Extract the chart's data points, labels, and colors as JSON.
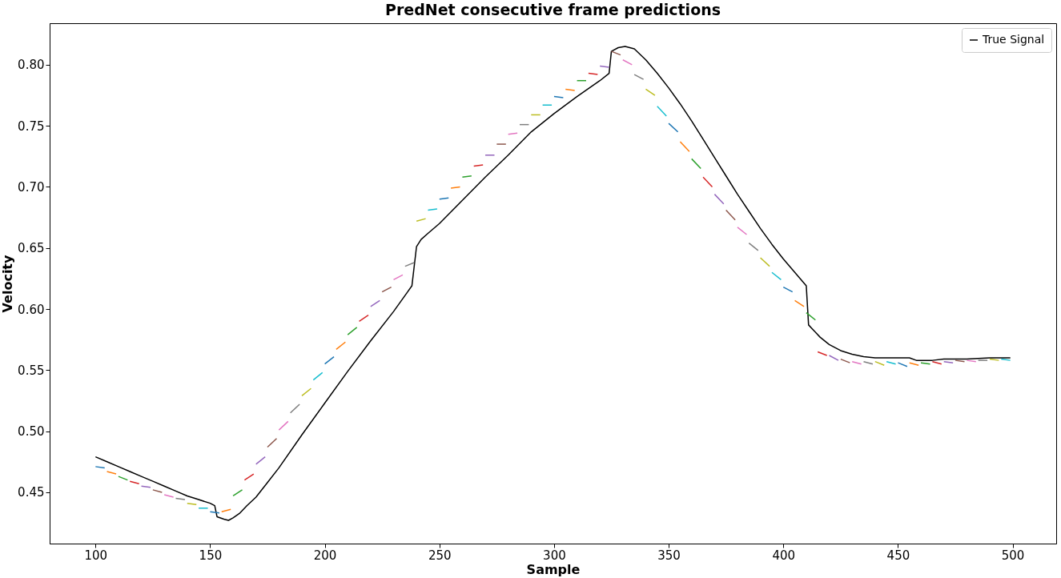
{
  "chart_data": {
    "type": "line",
    "title": "PredNet consecutive frame predictions",
    "xlabel": "Sample",
    "ylabel": "Velocity",
    "xlim": [
      80,
      519
    ],
    "ylim": [
      0.408,
      0.834
    ],
    "xticks": [
      100,
      150,
      200,
      250,
      300,
      350,
      400,
      450,
      500
    ],
    "yticks": [
      {
        "value": 0.45,
        "label": "0.45"
      },
      {
        "value": 0.5,
        "label": "0.50"
      },
      {
        "value": 0.55,
        "label": "0.55"
      },
      {
        "value": 0.6,
        "label": "0.60"
      },
      {
        "value": 0.65,
        "label": "0.65"
      },
      {
        "value": 0.7,
        "label": "0.70"
      },
      {
        "value": 0.75,
        "label": "0.75"
      },
      {
        "value": 0.8,
        "label": "0.80"
      }
    ],
    "grid": false,
    "legend": "top right",
    "series": [
      {
        "name": "True Signal",
        "color": "#000000",
        "x": [
          100,
          105,
          110,
          115,
          120,
          125,
          130,
          135,
          140,
          145,
          150,
          152,
          153,
          156,
          158,
          160,
          163,
          166,
          170,
          175,
          180,
          190,
          200,
          210,
          220,
          230,
          238,
          240,
          242,
          245,
          250,
          260,
          270,
          280,
          290,
          300,
          310,
          320,
          324,
          325,
          328,
          331,
          335,
          340,
          345,
          350,
          355,
          360,
          365,
          370,
          375,
          380,
          385,
          390,
          395,
          400,
          405,
          410,
          411,
          413,
          416,
          420,
          425,
          430,
          435,
          440,
          445,
          450,
          455,
          458,
          465,
          470,
          480,
          490,
          499
        ],
        "values": [
          0.479,
          0.475,
          0.471,
          0.467,
          0.463,
          0.459,
          0.455,
          0.451,
          0.447,
          0.444,
          0.441,
          0.439,
          0.43,
          0.428,
          0.427,
          0.429,
          0.433,
          0.439,
          0.446,
          0.458,
          0.47,
          0.497,
          0.523,
          0.549,
          0.574,
          0.598,
          0.619,
          0.651,
          0.657,
          0.662,
          0.67,
          0.689,
          0.708,
          0.726,
          0.745,
          0.76,
          0.774,
          0.787,
          0.793,
          0.811,
          0.814,
          0.815,
          0.813,
          0.804,
          0.793,
          0.781,
          0.768,
          0.754,
          0.739,
          0.724,
          0.709,
          0.694,
          0.68,
          0.666,
          0.653,
          0.641,
          0.63,
          0.619,
          0.587,
          0.583,
          0.577,
          0.571,
          0.566,
          0.563,
          0.561,
          0.56,
          0.56,
          0.56,
          0.56,
          0.558,
          0.558,
          0.559,
          0.559,
          0.56,
          0.56
        ]
      },
      {
        "color": "#1f77b4",
        "x": [
          100,
          104
        ],
        "values": [
          0.471,
          0.47
        ]
      },
      {
        "color": "#ff7f0e",
        "x": [
          105,
          109
        ],
        "values": [
          0.467,
          0.465
        ]
      },
      {
        "color": "#2ca02c",
        "x": [
          110,
          114
        ],
        "values": [
          0.463,
          0.46
        ]
      },
      {
        "color": "#d62728",
        "x": [
          115,
          119
        ],
        "values": [
          0.459,
          0.457
        ]
      },
      {
        "color": "#9467bd",
        "x": [
          120,
          124
        ],
        "values": [
          0.455,
          0.454
        ]
      },
      {
        "color": "#8c564b",
        "x": [
          125,
          129
        ],
        "values": [
          0.452,
          0.45
        ]
      },
      {
        "color": "#e377c2",
        "x": [
          130,
          134
        ],
        "values": [
          0.448,
          0.446
        ]
      },
      {
        "color": "#7f7f7f",
        "x": [
          135,
          139
        ],
        "values": [
          0.445,
          0.444
        ]
      },
      {
        "color": "#bcbd22",
        "x": [
          140,
          144
        ],
        "values": [
          0.441,
          0.44
        ]
      },
      {
        "color": "#17becf",
        "x": [
          145,
          149
        ],
        "values": [
          0.437,
          0.437
        ]
      },
      {
        "color": "#1f77b4",
        "x": [
          150,
          154
        ],
        "values": [
          0.434,
          0.433
        ]
      },
      {
        "color": "#ff7f0e",
        "x": [
          155,
          159
        ],
        "values": [
          0.434,
          0.436
        ]
      },
      {
        "color": "#2ca02c",
        "x": [
          160,
          164
        ],
        "values": [
          0.447,
          0.452
        ]
      },
      {
        "color": "#d62728",
        "x": [
          165,
          169
        ],
        "values": [
          0.46,
          0.465
        ]
      },
      {
        "color": "#9467bd",
        "x": [
          170,
          174
        ],
        "values": [
          0.473,
          0.479
        ]
      },
      {
        "color": "#8c564b",
        "x": [
          175,
          179
        ],
        "values": [
          0.487,
          0.494
        ]
      },
      {
        "color": "#e377c2",
        "x": [
          180,
          184
        ],
        "values": [
          0.501,
          0.508
        ]
      },
      {
        "color": "#7f7f7f",
        "x": [
          185,
          189
        ],
        "values": [
          0.515,
          0.522
        ]
      },
      {
        "color": "#bcbd22",
        "x": [
          190,
          194
        ],
        "values": [
          0.529,
          0.535
        ]
      },
      {
        "color": "#17becf",
        "x": [
          195,
          199
        ],
        "values": [
          0.542,
          0.548
        ]
      },
      {
        "color": "#1f77b4",
        "x": [
          200,
          204
        ],
        "values": [
          0.555,
          0.561
        ]
      },
      {
        "color": "#ff7f0e",
        "x": [
          205,
          209
        ],
        "values": [
          0.567,
          0.573
        ]
      },
      {
        "color": "#2ca02c",
        "x": [
          210,
          214
        ],
        "values": [
          0.579,
          0.585
        ]
      },
      {
        "color": "#d62728",
        "x": [
          215,
          219
        ],
        "values": [
          0.59,
          0.595
        ]
      },
      {
        "color": "#9467bd",
        "x": [
          220,
          224
        ],
        "values": [
          0.602,
          0.607
        ]
      },
      {
        "color": "#8c564b",
        "x": [
          225,
          229
        ],
        "values": [
          0.614,
          0.618
        ]
      },
      {
        "color": "#e377c2",
        "x": [
          230,
          234
        ],
        "values": [
          0.624,
          0.628
        ]
      },
      {
        "color": "#7f7f7f",
        "x": [
          235,
          239
        ],
        "values": [
          0.635,
          0.638
        ]
      },
      {
        "color": "#bcbd22",
        "x": [
          240,
          244
        ],
        "values": [
          0.672,
          0.674
        ]
      },
      {
        "color": "#17becf",
        "x": [
          245,
          249
        ],
        "values": [
          0.681,
          0.682
        ]
      },
      {
        "color": "#1f77b4",
        "x": [
          250,
          254
        ],
        "values": [
          0.69,
          0.691
        ]
      },
      {
        "color": "#ff7f0e",
        "x": [
          255,
          259
        ],
        "values": [
          0.699,
          0.7
        ]
      },
      {
        "color": "#2ca02c",
        "x": [
          260,
          264
        ],
        "values": [
          0.708,
          0.709
        ]
      },
      {
        "color": "#d62728",
        "x": [
          265,
          269
        ],
        "values": [
          0.717,
          0.718
        ]
      },
      {
        "color": "#9467bd",
        "x": [
          270,
          274
        ],
        "values": [
          0.726,
          0.726
        ]
      },
      {
        "color": "#8c564b",
        "x": [
          275,
          279
        ],
        "values": [
          0.735,
          0.735
        ]
      },
      {
        "color": "#e377c2",
        "x": [
          280,
          284
        ],
        "values": [
          0.743,
          0.744
        ]
      },
      {
        "color": "#7f7f7f",
        "x": [
          285,
          289
        ],
        "values": [
          0.751,
          0.751
        ]
      },
      {
        "color": "#bcbd22",
        "x": [
          290,
          294
        ],
        "values": [
          0.759,
          0.759
        ]
      },
      {
        "color": "#17becf",
        "x": [
          295,
          299
        ],
        "values": [
          0.767,
          0.767
        ]
      },
      {
        "color": "#1f77b4",
        "x": [
          300,
          304
        ],
        "values": [
          0.774,
          0.773
        ]
      },
      {
        "color": "#ff7f0e",
        "x": [
          305,
          309
        ],
        "values": [
          0.78,
          0.779
        ]
      },
      {
        "color": "#2ca02c",
        "x": [
          310,
          314
        ],
        "values": [
          0.787,
          0.787
        ]
      },
      {
        "color": "#d62728",
        "x": [
          315,
          319
        ],
        "values": [
          0.793,
          0.792
        ]
      },
      {
        "color": "#9467bd",
        "x": [
          320,
          324
        ],
        "values": [
          0.799,
          0.798
        ]
      },
      {
        "color": "#8c564b",
        "x": [
          325,
          329
        ],
        "values": [
          0.811,
          0.808
        ]
      },
      {
        "color": "#e377c2",
        "x": [
          330,
          334
        ],
        "values": [
          0.804,
          0.8
        ]
      },
      {
        "color": "#7f7f7f",
        "x": [
          335,
          339
        ],
        "values": [
          0.792,
          0.788
        ]
      },
      {
        "color": "#bcbd22",
        "x": [
          340,
          344
        ],
        "values": [
          0.78,
          0.775
        ]
      },
      {
        "color": "#17becf",
        "x": [
          345,
          349
        ],
        "values": [
          0.766,
          0.758
        ]
      },
      {
        "color": "#1f77b4",
        "x": [
          350,
          354
        ],
        "values": [
          0.752,
          0.745
        ]
      },
      {
        "color": "#ff7f0e",
        "x": [
          355,
          359
        ],
        "values": [
          0.737,
          0.729
        ]
      },
      {
        "color": "#2ca02c",
        "x": [
          360,
          364
        ],
        "values": [
          0.723,
          0.715
        ]
      },
      {
        "color": "#d62728",
        "x": [
          365,
          369
        ],
        "values": [
          0.708,
          0.7
        ]
      },
      {
        "color": "#9467bd",
        "x": [
          370,
          374
        ],
        "values": [
          0.694,
          0.686
        ]
      },
      {
        "color": "#8c564b",
        "x": [
          375,
          379
        ],
        "values": [
          0.681,
          0.673
        ]
      },
      {
        "color": "#e377c2",
        "x": [
          380,
          384
        ],
        "values": [
          0.667,
          0.661
        ]
      },
      {
        "color": "#7f7f7f",
        "x": [
          385,
          389
        ],
        "values": [
          0.654,
          0.648
        ]
      },
      {
        "color": "#bcbd22",
        "x": [
          390,
          394
        ],
        "values": [
          0.642,
          0.635
        ]
      },
      {
        "color": "#17becf",
        "x": [
          395,
          399
        ],
        "values": [
          0.63,
          0.624
        ]
      },
      {
        "color": "#1f77b4",
        "x": [
          400,
          404
        ],
        "values": [
          0.618,
          0.614
        ]
      },
      {
        "color": "#ff7f0e",
        "x": [
          405,
          409
        ],
        "values": [
          0.607,
          0.602
        ]
      },
      {
        "color": "#2ca02c",
        "x": [
          410,
          414
        ],
        "values": [
          0.597,
          0.591
        ]
      },
      {
        "color": "#d62728",
        "x": [
          415,
          419
        ],
        "values": [
          0.565,
          0.562
        ]
      },
      {
        "color": "#9467bd",
        "x": [
          420,
          424
        ],
        "values": [
          0.562,
          0.558
        ]
      },
      {
        "color": "#8c564b",
        "x": [
          425,
          429
        ],
        "values": [
          0.559,
          0.556
        ]
      },
      {
        "color": "#e377c2",
        "x": [
          430,
          434
        ],
        "values": [
          0.557,
          0.555
        ]
      },
      {
        "color": "#7f7f7f",
        "x": [
          435,
          439
        ],
        "values": [
          0.557,
          0.555
        ]
      },
      {
        "color": "#bcbd22",
        "x": [
          440,
          444
        ],
        "values": [
          0.557,
          0.554
        ]
      },
      {
        "color": "#17becf",
        "x": [
          445,
          449
        ],
        "values": [
          0.557,
          0.555
        ]
      },
      {
        "color": "#1f77b4",
        "x": [
          450,
          454
        ],
        "values": [
          0.556,
          0.553
        ]
      },
      {
        "color": "#ff7f0e",
        "x": [
          455,
          459
        ],
        "values": [
          0.556,
          0.554
        ]
      },
      {
        "color": "#2ca02c",
        "x": [
          460,
          464
        ],
        "values": [
          0.556,
          0.555
        ]
      },
      {
        "color": "#d62728",
        "x": [
          465,
          469
        ],
        "values": [
          0.557,
          0.555
        ]
      },
      {
        "color": "#9467bd",
        "x": [
          470,
          474
        ],
        "values": [
          0.557,
          0.556
        ]
      },
      {
        "color": "#8c564b",
        "x": [
          475,
          479
        ],
        "values": [
          0.558,
          0.557
        ]
      },
      {
        "color": "#e377c2",
        "x": [
          480,
          484
        ],
        "values": [
          0.558,
          0.557
        ]
      },
      {
        "color": "#7f7f7f",
        "x": [
          485,
          489
        ],
        "values": [
          0.558,
          0.558
        ]
      },
      {
        "color": "#bcbd22",
        "x": [
          490,
          494
        ],
        "values": [
          0.559,
          0.558
        ]
      },
      {
        "color": "#17becf",
        "x": [
          495,
          499
        ],
        "values": [
          0.559,
          0.558
        ]
      }
    ]
  }
}
